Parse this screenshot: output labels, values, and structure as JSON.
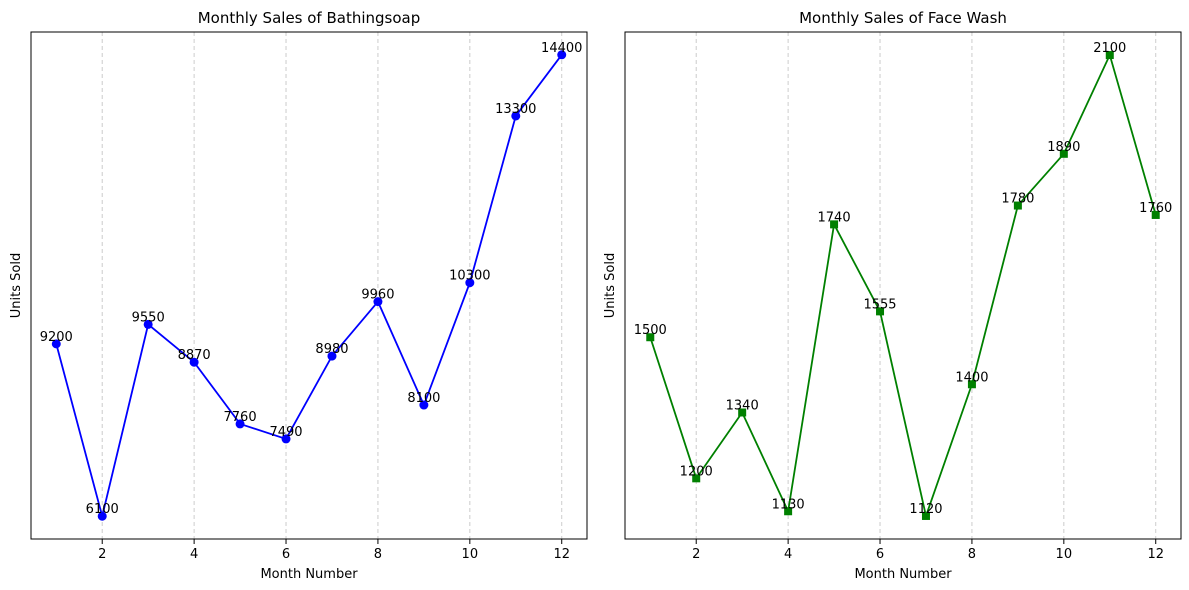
{
  "chart_data": [
    {
      "type": "line",
      "title": "Monthly Sales of Bathingsoap",
      "xlabel": "Month Number",
      "ylabel": "Units Sold",
      "x": [
        1,
        2,
        3,
        4,
        5,
        6,
        7,
        8,
        9,
        10,
        11,
        12
      ],
      "xticks": [
        2,
        4,
        6,
        8,
        10,
        12
      ],
      "xlim": [
        0.45,
        12.55
      ],
      "ylim": [
        5690,
        14810
      ],
      "grid": "x-dashed",
      "series": [
        {
          "color": "#0000ff",
          "marker": "circle",
          "values": [
            9200,
            6100,
            9550,
            8870,
            7760,
            7490,
            8980,
            9960,
            8100,
            10300,
            13300,
            14400
          ]
        }
      ]
    },
    {
      "type": "line",
      "title": "Monthly Sales of Face Wash",
      "xlabel": "Month Number",
      "ylabel": "Units Sold",
      "x": [
        1,
        2,
        3,
        4,
        5,
        6,
        7,
        8,
        9,
        10,
        11,
        12
      ],
      "xticks": [
        2,
        4,
        6,
        8,
        10,
        12
      ],
      "xlim": [
        0.45,
        12.55
      ],
      "ylim": [
        1071,
        2149
      ],
      "grid": "x-dashed",
      "series": [
        {
          "color": "#008000",
          "marker": "square",
          "values": [
            1500,
            1200,
            1340,
            1130,
            1740,
            1555,
            1120,
            1400,
            1780,
            1890,
            2100,
            1760
          ]
        }
      ]
    }
  ]
}
